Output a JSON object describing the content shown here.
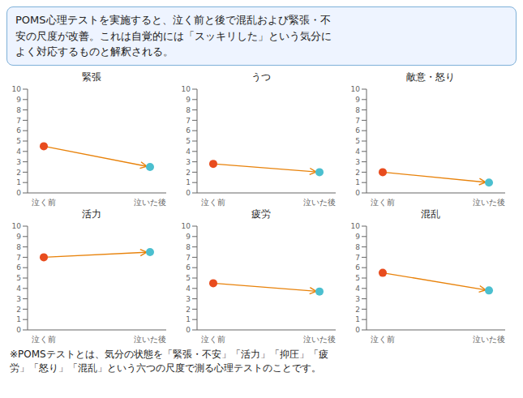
{
  "title": "POMS心理テストを実施すると、泣く前と後で混乱および緊張・不\n安の尺度が改善。これは自覚的には「スッキリした」という気分に\nよく対応するものと解釈される。",
  "annotations": [
    "※POMSテストとは、気分の状態を「緊張・不安」「活力」「抑圧」「疲\n労」「怒り」「混乱」という六つの尺度で測る心理テストのことです。"
  ],
  "chart_data": [
    {
      "type": "line",
      "title": "緊張",
      "categories": [
        "泣く前",
        "泣いた後"
      ],
      "values": [
        4.5,
        2.5
      ],
      "ylim": [
        0,
        10
      ],
      "yticks": [
        0,
        1,
        2,
        3,
        4,
        5,
        6,
        7,
        8,
        9,
        10
      ],
      "colors": [
        "#E84C1E",
        "#4BBFCF"
      ],
      "color": "#E8820A",
      "grid": false
    },
    {
      "type": "line",
      "title": "うつ",
      "categories": [
        "泣く前",
        "泣いた後"
      ],
      "values": [
        2.8,
        2.0
      ],
      "ylim": [
        0,
        10
      ],
      "yticks": [
        0,
        1,
        2,
        3,
        4,
        5,
        6,
        7,
        8,
        9,
        10
      ],
      "colors": [
        "#E84C1E",
        "#4BBFCF"
      ],
      "color": "#E8820A",
      "grid": false
    },
    {
      "type": "line",
      "title": "敵意・怒り",
      "categories": [
        "泣く前",
        "泣いた後"
      ],
      "values": [
        2.0,
        1.0
      ],
      "ylim": [
        0,
        10
      ],
      "yticks": [
        0,
        1,
        2,
        3,
        4,
        5,
        6,
        7,
        8,
        9,
        10
      ],
      "colors": [
        "#E84C1E",
        "#4BBFCF"
      ],
      "color": "#E8820A",
      "grid": false
    },
    {
      "type": "line",
      "title": "活力",
      "categories": [
        "泣く前",
        "泣いた後"
      ],
      "values": [
        7.0,
        7.5
      ],
      "ylim": [
        0,
        10
      ],
      "yticks": [
        0,
        1,
        2,
        3,
        4,
        5,
        6,
        7,
        8,
        9,
        10
      ],
      "colors": [
        "#E84C1E",
        "#4BBFCF"
      ],
      "color": "#E8820A",
      "grid": false
    },
    {
      "type": "line",
      "title": "疲労",
      "categories": [
        "泣く前",
        "泣いた後"
      ],
      "values": [
        4.5,
        3.7
      ],
      "ylim": [
        0,
        10
      ],
      "yticks": [
        0,
        1,
        2,
        3,
        4,
        5,
        6,
        7,
        8,
        9,
        10
      ],
      "colors": [
        "#E84C1E",
        "#4BBFCF"
      ],
      "color": "#E8820A",
      "grid": false
    },
    {
      "type": "line",
      "title": "混乱",
      "categories": [
        "泣く前",
        "泣いた後"
      ],
      "values": [
        5.5,
        3.8
      ],
      "ylim": [
        0,
        10
      ],
      "yticks": [
        0,
        1,
        2,
        3,
        4,
        5,
        6,
        7,
        8,
        9,
        10
      ],
      "colors": [
        "#E84C1E",
        "#4BBFCF"
      ],
      "color": "#E8820A",
      "grid": false
    }
  ]
}
